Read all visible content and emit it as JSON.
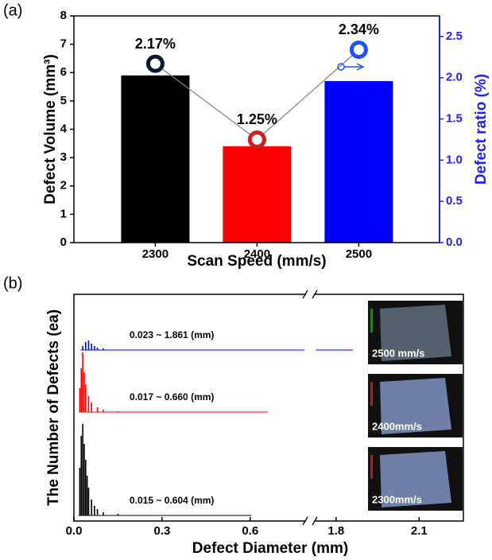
{
  "chart_data": [
    {
      "type": "bar",
      "panel_label": "(a)",
      "xlabel": "Scan Speed (mm/s)",
      "ylabel": "Defect Volume (mm³)",
      "y2label": "Defect ratio (%)",
      "categories": [
        "2300",
        "2400",
        "2500"
      ],
      "ylim": [
        0,
        8
      ],
      "yticks": [
        0,
        1,
        2,
        3,
        4,
        5,
        6,
        7,
        8
      ],
      "y2lim": [
        0,
        2.75
      ],
      "y2ticks": [
        {
          "value": 0,
          "label": "0.0"
        },
        0.5,
        {
          "value": 1,
          "label": "1.0"
        },
        1.5,
        {
          "value": 2,
          "label": "2.0"
        },
        2.5
      ],
      "y2color": "#2020ff",
      "series": [
        {
          "type": "bar",
          "colors": [
            "#000000",
            "#ff0000",
            "#0000ff"
          ],
          "values": [
            5.9,
            3.4,
            5.7
          ]
        },
        {
          "type": "line",
          "axis": "y2",
          "color": "#808080",
          "marker_colors": [
            "#0a1a2a",
            "#cc2020",
            "#2050ff"
          ],
          "values": [
            2.17,
            1.25,
            2.34
          ],
          "value_labels": [
            "2.17%",
            "1.25%",
            "2.34%"
          ]
        }
      ]
    },
    {
      "type": "spike",
      "panel_label": "(b)",
      "xlabel": "Defect Diameter (mm)",
      "ylabel": "The Number of Defects (ea)",
      "xlim_segments": [
        [
          0,
          0.79
        ],
        [
          1.72,
          2.26
        ]
      ],
      "xticks": [
        {
          "value": 0,
          "label": "0.0"
        },
        0.3,
        0.6,
        1.8,
        2.1
      ],
      "ylim": [
        0,
        120
      ],
      "series": [
        {
          "color": "#0000ff",
          "range": [
            0.023,
            1.861
          ],
          "range_label": "0.023 ~ 1.861 (mm)",
          "image_caption": "2500 mm/s",
          "x": [
            0.03,
            0.04,
            0.05,
            0.06,
            0.07,
            0.08,
            0.1
          ],
          "values": [
            5,
            10,
            12,
            8,
            5,
            3,
            2
          ]
        },
        {
          "color": "#ff0000",
          "range": [
            0.017,
            0.66
          ],
          "range_label": "0.017 ~ 0.660 (mm)",
          "image_caption": "2400mm/s",
          "x": [
            0.02,
            0.025,
            0.03,
            0.035,
            0.04,
            0.05,
            0.06,
            0.08,
            0.1,
            0.15
          ],
          "values": [
            30,
            55,
            75,
            50,
            35,
            20,
            12,
            6,
            3,
            1
          ]
        },
        {
          "color": "#000000",
          "range": [
            0.015,
            0.604
          ],
          "range_label": "0.015 ~ 0.604 (mm)",
          "image_caption": "2300mm/s",
          "x": [
            0.02,
            0.025,
            0.03,
            0.035,
            0.04,
            0.045,
            0.05,
            0.06,
            0.07,
            0.08,
            0.1,
            0.15
          ],
          "values": [
            60,
            100,
            115,
            90,
            70,
            50,
            35,
            20,
            12,
            8,
            4,
            2
          ]
        }
      ]
    }
  ]
}
